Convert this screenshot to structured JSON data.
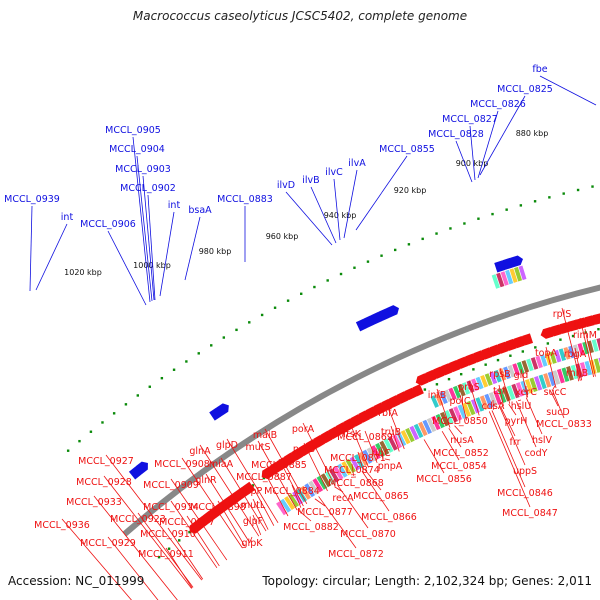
{
  "title": "Macrococcus caseolyticus JCSC5402, complete genome",
  "footer": {
    "accession": "Accession: NC_011999",
    "topology": "Topology: circular; Length: 2,102,324 bp; Genes: 2,011"
  },
  "colors": {
    "forward": "#1010e0",
    "reverse": "#ee1111",
    "backbone": "#888888",
    "ticks": "#0a8a0a"
  },
  "ticks": [
    "880 kbp",
    "900 kbp",
    "920 kbp",
    "940 kbp",
    "960 kbp",
    "980 kbp",
    "1000 kbp",
    "1020 kbp"
  ],
  "forward_labels": [
    "fbe",
    "MCCL_0825",
    "MCCL_0826",
    "MCCL_0827",
    "MCCL_0828",
    "MCCL_0855",
    "ilvA",
    "ilvC",
    "ilvB",
    "ilvD",
    "MCCL_0883",
    "bsaA",
    "int",
    "MCCL_0902",
    "MCCL_0903",
    "MCCL_0904",
    "MCCL_0905",
    "MCCL_0906",
    "int",
    "MCCL_0939"
  ],
  "reverse_labels": [
    "rplS",
    "ffh",
    "rimM",
    "rbgA",
    "rnhB",
    "topA",
    "gid",
    "sucC",
    "rpsB",
    "xerC",
    "hslU",
    "sucD",
    "tsf",
    "MCCL_0833",
    "pyrH",
    "hslV",
    "frr",
    "codY",
    "uppS",
    "MCCL_0846",
    "MCCL_0847",
    "proS",
    "cdsA",
    "polC",
    "infB",
    "MCCL_0850",
    "nusA",
    "MCCL_0852",
    "MCCL_0854",
    "MCCL_0856",
    "rbfA",
    "truB",
    "ribC",
    "pnpA",
    "ftsK",
    "MCCL_0869",
    "MCCL_0871",
    "MCCL_0874",
    "MCCL_0868",
    "MCCL_0865",
    "recA",
    "MCCL_0877",
    "MCCL_0866",
    "MCCL_0870",
    "MCCL_0872",
    "MCCL_0882",
    "porA",
    "porB",
    "MCCL_0884",
    "MCCL_0885",
    "maiB",
    "mutS",
    "MCCL_0887",
    "glpP",
    "mutL",
    "glpF",
    "glpK",
    "glpD",
    "glnA",
    "miaA",
    "glnR",
    "MCCL_0898",
    "MCCL_0907",
    "MCCL_0908",
    "MCCL_0909",
    "MCCL_0910",
    "MCCL_0911",
    "MCCL_0914",
    "MCCL_0923",
    "MCCL_0927",
    "MCCL_0928",
    "MCCL_0929",
    "MCCL_0933",
    "MCCL_0936"
  ]
}
